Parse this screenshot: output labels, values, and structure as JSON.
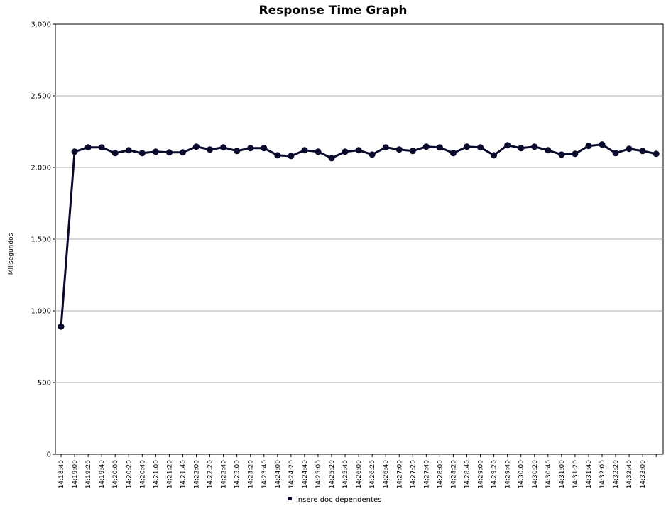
{
  "chart_data": {
    "type": "line",
    "title": "Response Time Graph",
    "xlabel": "",
    "ylabel": "Milisegundos",
    "ylim": [
      0,
      3000
    ],
    "yticks": [
      0,
      500,
      1000,
      1500,
      2000,
      2500,
      3000
    ],
    "ytick_labels": [
      "0",
      "500",
      "1.000",
      "1.500",
      "2.000",
      "2.500",
      "3.000"
    ],
    "grid": true,
    "legend_placement": "bottom-center",
    "x": [
      "14:18:40",
      "14:19:00",
      "14:19:20",
      "14:19:40",
      "14:20:00",
      "14:20:20",
      "14:20:40",
      "14:21:00",
      "14:21:20",
      "14:21:40",
      "14:22:00",
      "14:22:20",
      "14:22:40",
      "14:23:00",
      "14:23:20",
      "14:23:40",
      "14:24:00",
      "14:24:20",
      "14:24:40",
      "14:25:00",
      "14:25:20",
      "14:25:40",
      "14:26:00",
      "14:26:20",
      "14:26:40",
      "14:27:00",
      "14:27:20",
      "14:27:40",
      "14:28:00",
      "14:28:20",
      "14:28:40",
      "14:29:00",
      "14:29:20",
      "14:29:40",
      "14:30:00",
      "14:30:20",
      "14:30:40",
      "14:31:00",
      "14:31:20",
      "14:31:40",
      "14:32:00",
      "14:32:20",
      "14:32:40",
      "14:33:00",
      "14:33:20"
    ],
    "x_tick_labels": [
      "14:18:40",
      "14:19:00",
      "14:19:20",
      "14:19:40",
      "14:20:00",
      "14:20:20",
      "14:20:40",
      "14:21:00",
      "14:21:20",
      "14:21:40",
      "14:22:00",
      "14:22:20",
      "14:22:40",
      "14:23:00",
      "14:23:20",
      "14:23:40",
      "14:24:00",
      "14:24:20",
      "14:24:40",
      "14:25:00",
      "14:25:20",
      "14:25:40",
      "14:26:00",
      "14:26:20",
      "14:26:40",
      "14:27:00",
      "14:27:20",
      "14:27:40",
      "14:28:00",
      "14:28:20",
      "14:28:40",
      "14:29:00",
      "14:29:20",
      "14:29:40",
      "14:30:00",
      "14:30:20",
      "14:30:40",
      "14:31:00",
      "14:31:20",
      "14:31:40",
      "14:32:00",
      "14:32:20",
      "14:32:40",
      "14:33:00",
      ""
    ],
    "series": [
      {
        "name": "insere doc dependentes",
        "color": "#0a0a2e",
        "values": [
          890,
          2110,
          2140,
          2140,
          2100,
          2120,
          2100,
          2110,
          2105,
          2105,
          2145,
          2125,
          2140,
          2115,
          2135,
          2135,
          2085,
          2080,
          2120,
          2110,
          2065,
          2110,
          2120,
          2090,
          2140,
          2125,
          2115,
          2145,
          2140,
          2100,
          2145,
          2140,
          2085,
          2155,
          2135,
          2145,
          2120,
          2090,
          2095,
          2150,
          2160,
          2100,
          2130,
          2115,
          2095
        ]
      }
    ]
  }
}
